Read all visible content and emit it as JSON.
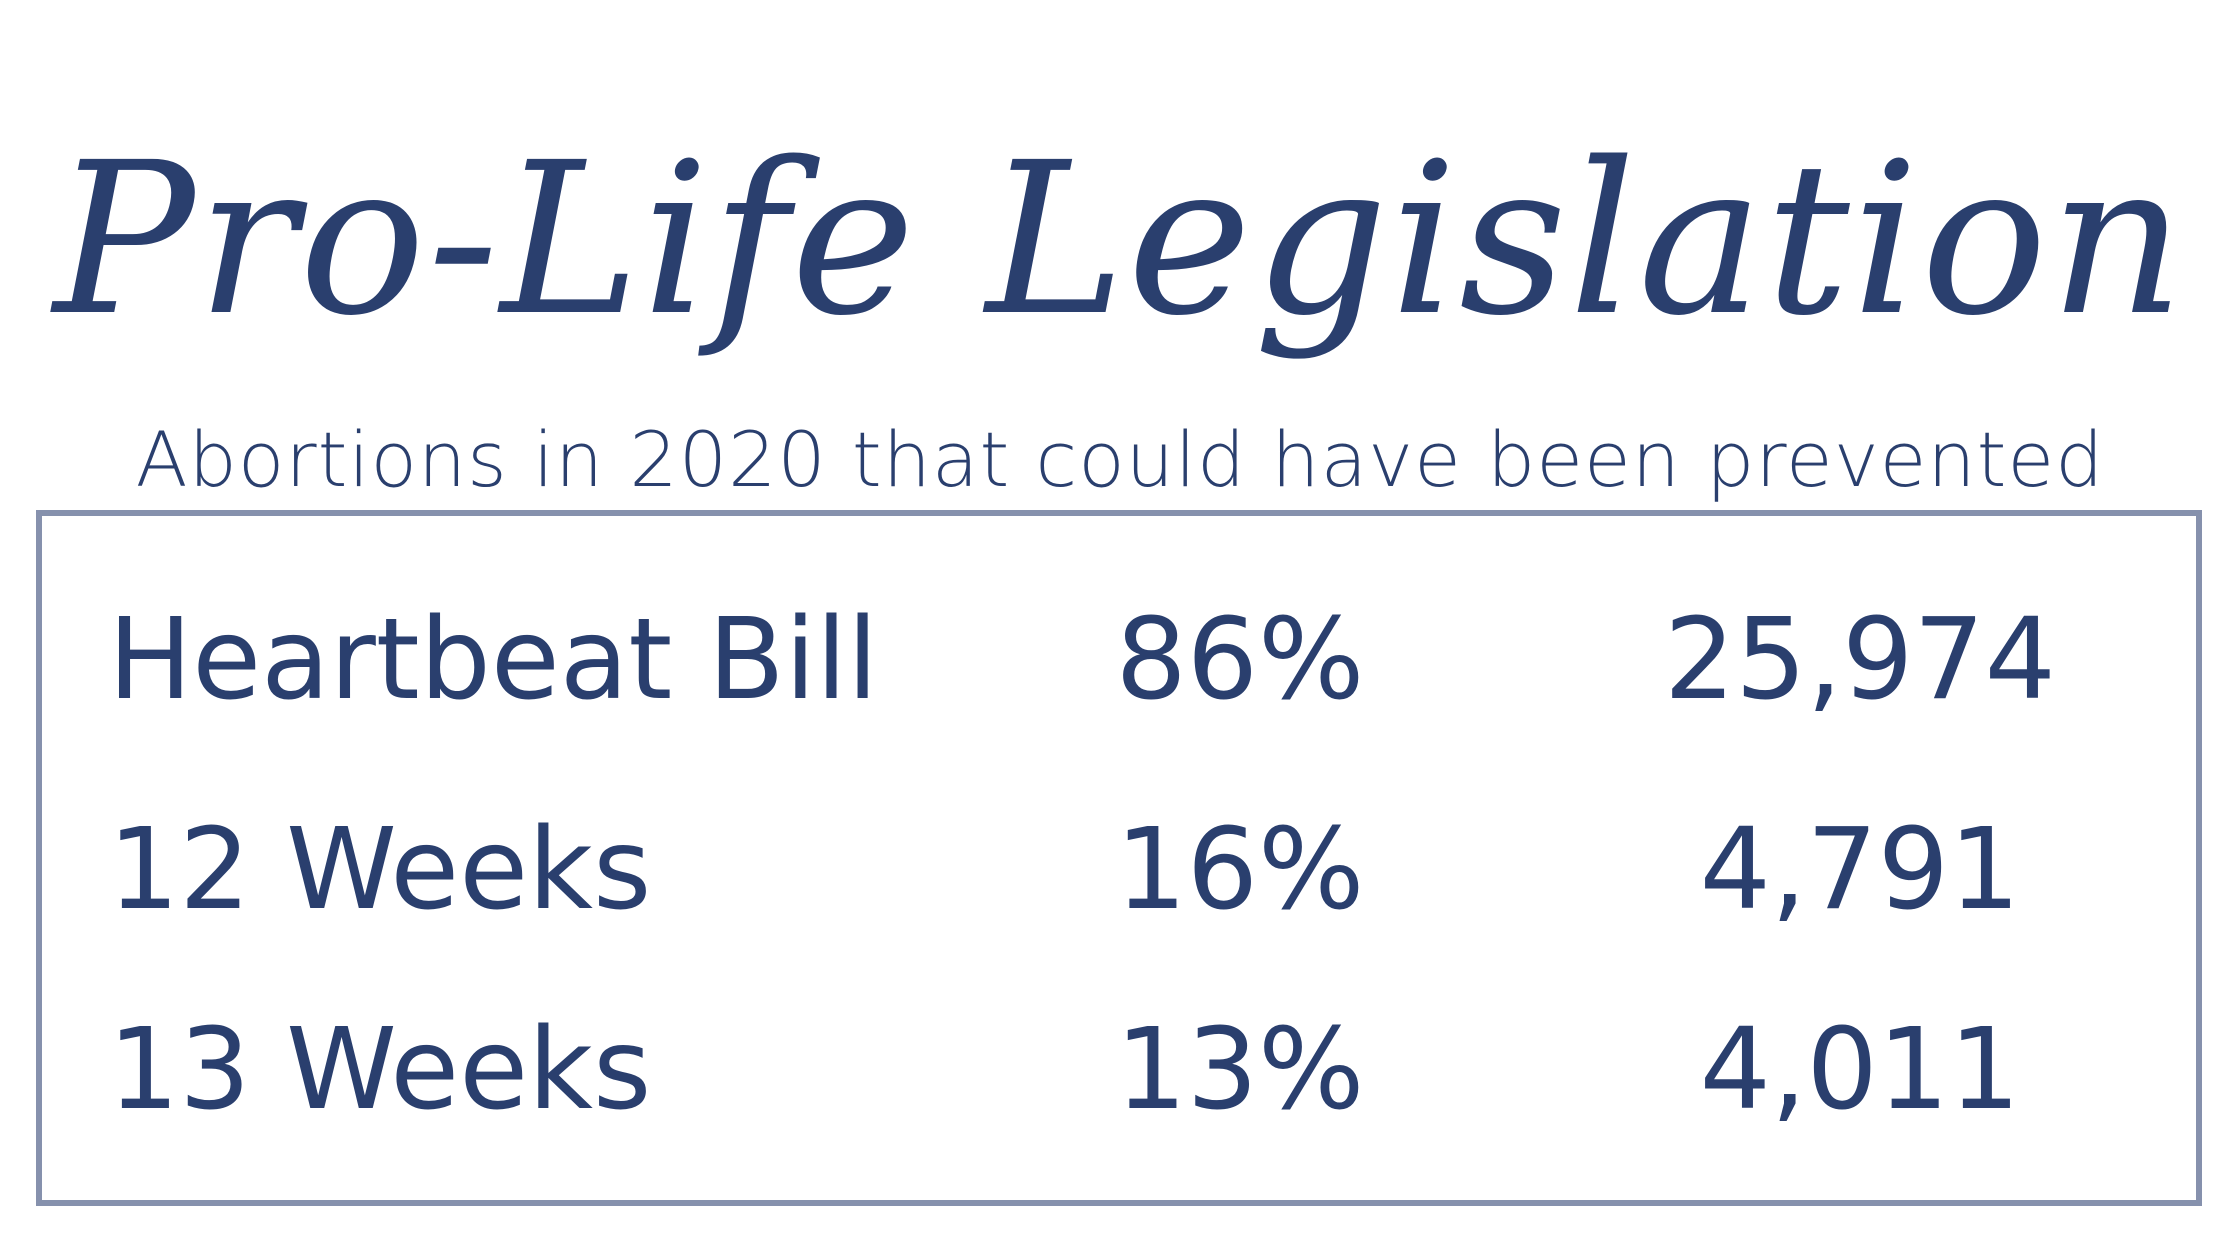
{
  "header": {
    "title": "Pro-Life Legislation",
    "subtitle": "Abortions in 2020 that could have been prevented"
  },
  "table": {
    "rows": [
      {
        "label": "Heartbeat Bill",
        "percent": "86%",
        "count": "25,974"
      },
      {
        "label": "12 Weeks",
        "percent": "16%",
        "count": "4,791"
      },
      {
        "label": "13 Weeks",
        "percent": "13%",
        "count": "4,011"
      }
    ]
  },
  "colors": {
    "text": "#2a3f6e",
    "border": "#8691ad",
    "background": "#ffffff"
  }
}
